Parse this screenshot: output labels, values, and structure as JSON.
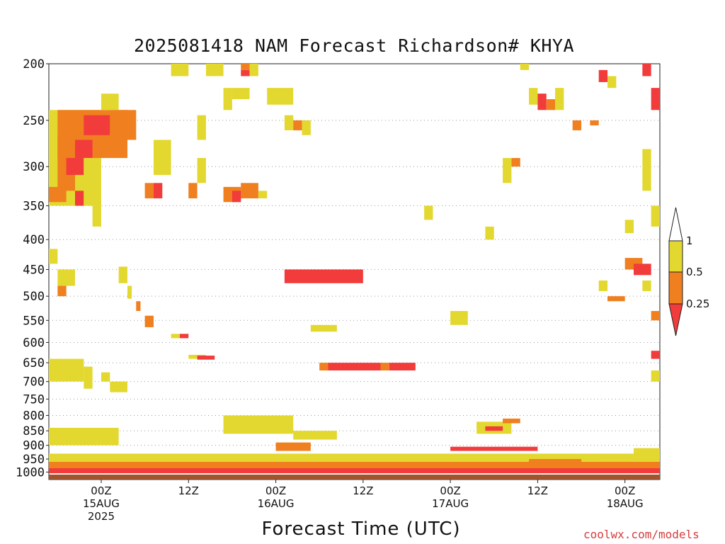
{
  "chart_data": {
    "type": "heatmap",
    "title": "2025081418 NAM Forecast Richardson# KHYA",
    "xlabel": "Forecast Time (UTC)",
    "ylabel": "",
    "y_axis": "pressure (hPa), inverted",
    "ylim": [
      1030,
      200
    ],
    "xlim_hours": [
      -6,
      64
    ],
    "y_ticks": [
      200,
      250,
      300,
      350,
      400,
      450,
      500,
      550,
      600,
      650,
      700,
      750,
      800,
      850,
      900,
      950,
      1000
    ],
    "x_ticks": [
      {
        "hour": 0,
        "lines": [
          "00Z",
          "15AUG",
          "2025"
        ]
      },
      {
        "hour": 10,
        "lines": [
          "12Z"
        ]
      },
      {
        "hour": 20,
        "lines": [
          "00Z",
          "16AUG"
        ]
      },
      {
        "hour": 30,
        "lines": [
          "12Z"
        ]
      },
      {
        "hour": 40,
        "lines": [
          "00Z",
          "17AUG"
        ]
      },
      {
        "hour": 50,
        "lines": [
          "12Z"
        ]
      },
      {
        "hour": 60,
        "lines": [
          "00Z",
          "18AUG"
        ]
      }
    ],
    "grid": "dotted horizontal lines at pressure ticks",
    "legend": {
      "placement": "right",
      "labels": [
        "1",
        "0.5",
        "0.25"
      ],
      "classes": [
        {
          "range": "0.5–1",
          "color": "#e3d830"
        },
        {
          "range": "0.25–0.5",
          "color": "#ef7f1f"
        },
        {
          "range": "< 0.25",
          "color": "#f23b3b"
        }
      ],
      "ground_color": "#a0532c"
    },
    "cells_columns": [
      "x_start_hour",
      "x_end_hour",
      "p_top_hPa",
      "p_bottom_hPa",
      "class"
    ],
    "cells": [
      [
        -6,
        0,
        240,
        350,
        "y"
      ],
      [
        -5,
        3,
        240,
        290,
        "o"
      ],
      [
        -5,
        -3,
        265,
        330,
        "o"
      ],
      [
        -4,
        -2,
        290,
        310,
        "r"
      ],
      [
        -3,
        -1,
        270,
        290,
        "r"
      ],
      [
        -2,
        1,
        245,
        265,
        "r"
      ],
      [
        1,
        4,
        240,
        270,
        "o"
      ],
      [
        0,
        2,
        225,
        240,
        "y"
      ],
      [
        1,
        2,
        260,
        280,
        "o"
      ],
      [
        -6,
        -4,
        325,
        345,
        "o"
      ],
      [
        -3,
        -2,
        330,
        350,
        "r"
      ],
      [
        -2,
        -1,
        290,
        350,
        "y"
      ],
      [
        -1,
        0,
        350,
        380,
        "y"
      ],
      [
        -6,
        -5,
        415,
        440,
        "y"
      ],
      [
        -5,
        -3,
        450,
        480,
        "y"
      ],
      [
        -5,
        -4,
        480,
        500,
        "o"
      ],
      [
        2,
        3,
        445,
        475,
        "y"
      ],
      [
        3,
        3.5,
        480,
        505,
        "y"
      ],
      [
        4,
        4.5,
        510,
        530,
        "o"
      ],
      [
        5,
        6,
        540,
        565,
        "o"
      ],
      [
        6,
        8,
        270,
        310,
        "y"
      ],
      [
        5,
        6,
        320,
        340,
        "o"
      ],
      [
        6,
        7,
        320,
        340,
        "r"
      ],
      [
        8,
        9,
        580,
        590,
        "y"
      ],
      [
        9,
        10,
        580,
        590,
        "r"
      ],
      [
        10,
        11,
        320,
        340,
        "o"
      ],
      [
        11,
        12,
        290,
        320,
        "y"
      ],
      [
        11,
        12,
        245,
        270,
        "y"
      ],
      [
        10,
        12,
        630,
        640,
        "y"
      ],
      [
        11,
        13,
        632,
        642,
        "r"
      ],
      [
        8,
        10,
        200,
        210,
        "y"
      ],
      [
        12,
        14,
        200,
        210,
        "y"
      ],
      [
        14,
        15,
        220,
        240,
        "y"
      ],
      [
        15,
        17,
        220,
        230,
        "y"
      ],
      [
        16,
        17,
        200,
        205,
        "o"
      ],
      [
        16,
        17,
        205,
        210,
        "r"
      ],
      [
        17,
        18,
        200,
        210,
        "y"
      ],
      [
        14,
        16,
        325,
        345,
        "o"
      ],
      [
        16,
        18,
        320,
        340,
        "o"
      ],
      [
        15,
        16,
        330,
        345,
        "r"
      ],
      [
        18,
        19,
        330,
        340,
        "y"
      ],
      [
        19,
        22,
        220,
        235,
        "y"
      ],
      [
        21,
        22,
        245,
        260,
        "y"
      ],
      [
        22,
        23,
        250,
        260,
        "o"
      ],
      [
        23,
        24,
        250,
        265,
        "y"
      ],
      [
        21,
        30,
        450,
        475,
        "r"
      ],
      [
        24,
        27,
        560,
        575,
        "y"
      ],
      [
        25,
        26,
        650,
        670,
        "o"
      ],
      [
        26,
        32,
        650,
        670,
        "r"
      ],
      [
        32,
        33,
        650,
        670,
        "o"
      ],
      [
        33,
        36,
        650,
        670,
        "r"
      ],
      [
        -6,
        -2,
        640,
        700,
        "y"
      ],
      [
        -2,
        -1,
        660,
        720,
        "y"
      ],
      [
        0,
        1,
        675,
        700,
        "y"
      ],
      [
        1,
        3,
        700,
        730,
        "y"
      ],
      [
        48,
        49,
        200,
        205,
        "y"
      ],
      [
        49,
        50,
        220,
        235,
        "y"
      ],
      [
        50,
        51,
        225,
        240,
        "r"
      ],
      [
        51,
        52,
        230,
        240,
        "o"
      ],
      [
        52,
        53,
        220,
        240,
        "y"
      ],
      [
        54,
        55,
        250,
        260,
        "o"
      ],
      [
        56,
        57,
        250,
        255,
        "o"
      ],
      [
        57,
        58,
        205,
        215,
        "r"
      ],
      [
        58,
        59,
        210,
        220,
        "y"
      ],
      [
        60,
        61,
        370,
        390,
        "y"
      ],
      [
        60,
        62,
        430,
        450,
        "o"
      ],
      [
        61,
        63,
        440,
        460,
        "r"
      ],
      [
        62,
        63,
        470,
        490,
        "y"
      ],
      [
        62,
        63,
        200,
        210,
        "r"
      ],
      [
        63,
        64,
        220,
        240,
        "r"
      ],
      [
        62,
        63,
        280,
        330,
        "y"
      ],
      [
        63,
        64,
        350,
        380,
        "y"
      ],
      [
        63,
        64,
        530,
        550,
        "o"
      ],
      [
        63,
        64,
        620,
        640,
        "r"
      ],
      [
        63,
        64,
        670,
        700,
        "y"
      ],
      [
        58,
        60,
        500,
        510,
        "o"
      ],
      [
        57,
        58,
        470,
        490,
        "y"
      ],
      [
        44,
        45,
        380,
        400,
        "y"
      ],
      [
        46,
        47,
        290,
        320,
        "y"
      ],
      [
        47,
        48,
        290,
        300,
        "o"
      ],
      [
        37,
        38,
        350,
        370,
        "y"
      ],
      [
        40,
        42,
        530,
        560,
        "y"
      ]
    ],
    "lowlevel_bands_columns": [
      "x_start_hour",
      "x_end_hour",
      "p_top_hPa",
      "p_bottom_hPa",
      "class"
    ],
    "lowlevel_bands": [
      [
        -6,
        64,
        1010,
        1030,
        "ground"
      ],
      [
        -6,
        64,
        985,
        1005,
        "r"
      ],
      [
        -6,
        64,
        960,
        985,
        "o"
      ],
      [
        -6,
        64,
        930,
        960,
        "y"
      ],
      [
        -6,
        2,
        840,
        900,
        "y"
      ],
      [
        14,
        22,
        800,
        860,
        "y"
      ],
      [
        22,
        27,
        850,
        880,
        "y"
      ],
      [
        20,
        24,
        890,
        920,
        "o"
      ],
      [
        43,
        47,
        820,
        860,
        "y"
      ],
      [
        44,
        46,
        835,
        850,
        "r"
      ],
      [
        46,
        48,
        810,
        825,
        "o"
      ],
      [
        40,
        50,
        905,
        920,
        "r"
      ],
      [
        49,
        55,
        950,
        965,
        "o"
      ],
      [
        57,
        61,
        940,
        960,
        "y"
      ],
      [
        61,
        64,
        910,
        950,
        "y"
      ]
    ]
  }
}
